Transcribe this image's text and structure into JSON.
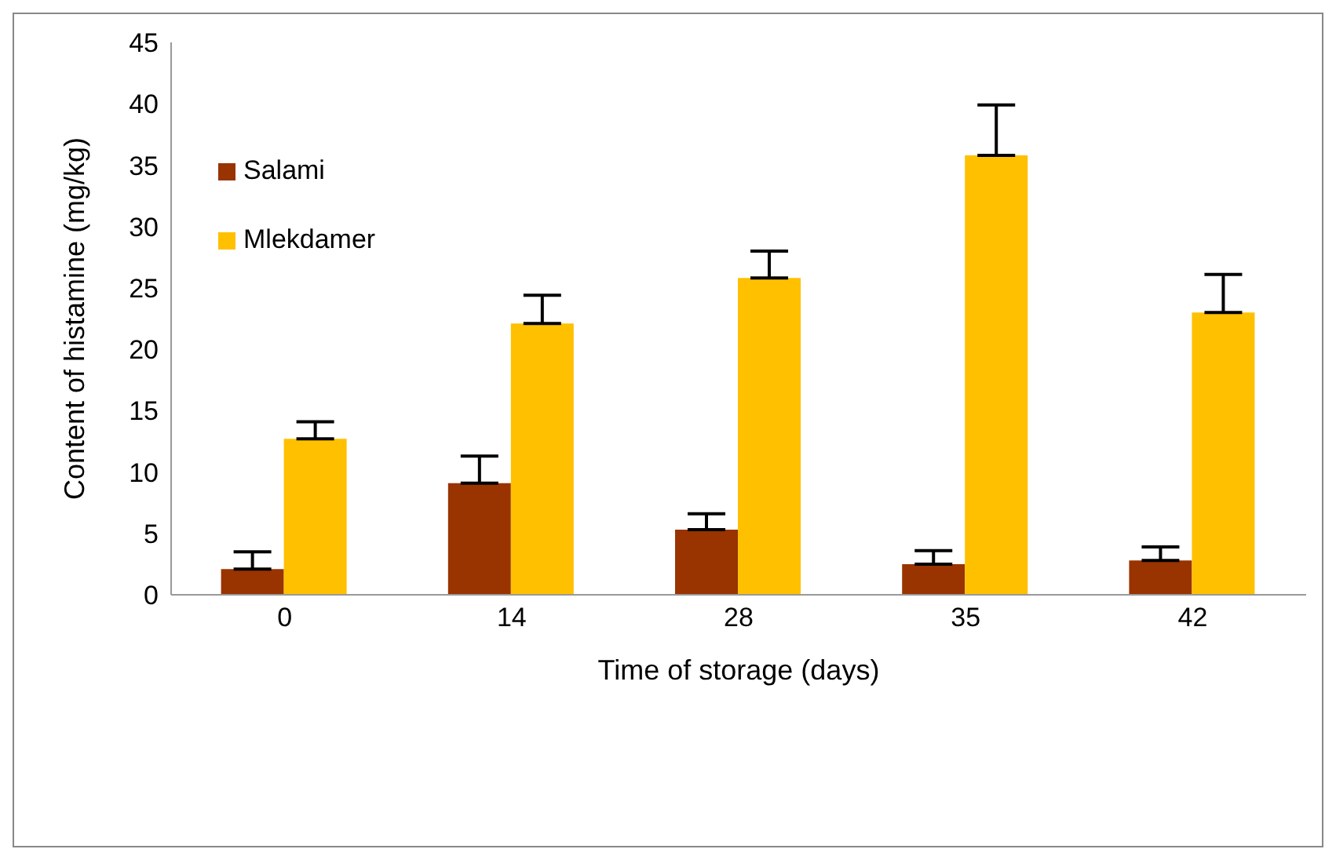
{
  "chart_data": {
    "type": "bar",
    "xlabel": "Time of storage (days)",
    "ylabel": "Content of histamine (mg/kg)",
    "categories": [
      "0",
      "14",
      "28",
      "35",
      "42"
    ],
    "series": [
      {
        "name": "Salami",
        "color": "#993300",
        "values": [
          2.1,
          9.1,
          5.3,
          2.5,
          2.8
        ],
        "errors": [
          [
            2.1,
            3.5
          ],
          [
            9.1,
            11.3
          ],
          [
            5.3,
            6.6
          ],
          [
            2.5,
            3.6
          ],
          [
            2.8,
            3.9
          ]
        ]
      },
      {
        "name": "Mlekdamer",
        "color": "#ffc000",
        "values": [
          12.7,
          22.1,
          25.8,
          35.8,
          23.0
        ],
        "errors": [
          [
            12.7,
            14.1
          ],
          [
            22.1,
            24.4
          ],
          [
            25.8,
            28.0
          ],
          [
            35.8,
            39.9
          ],
          [
            23.0,
            26.1
          ]
        ]
      }
    ],
    "ylim": [
      0,
      45
    ],
    "yticks": [
      0,
      5,
      10,
      15,
      20,
      25,
      30,
      35,
      40,
      45
    ],
    "grid": false,
    "legend": "top left"
  }
}
